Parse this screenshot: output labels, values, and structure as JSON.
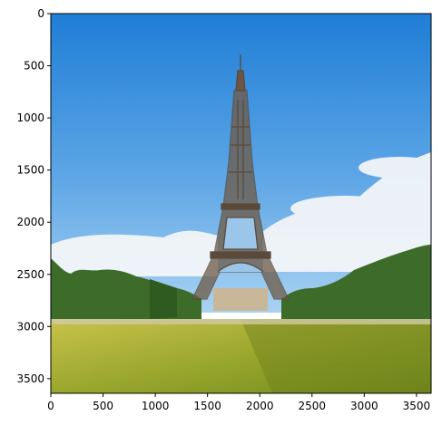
{
  "figure": {
    "kind": "image-display-with-pixel-axes",
    "image_description_tag": "eiffel-tower-photo",
    "x_axis": {
      "ticks": [
        0,
        500,
        1000,
        1500,
        2000,
        2500,
        3000,
        3500
      ],
      "range": [
        0,
        3640
      ]
    },
    "y_axis": {
      "ticks": [
        0,
        500,
        1000,
        1500,
        2000,
        2500,
        3000,
        3500
      ],
      "range": [
        0,
        3640
      ],
      "inverted": true
    },
    "colors": {
      "sky_top": "#1f7ed6",
      "sky_bottom": "#8fc3ec",
      "cloud": "#f2f5f8",
      "tower": "#5b4a3a",
      "tree": "#3d6b2a",
      "grass_light": "#b7b83a",
      "grass_dark": "#7a8a1f",
      "frame": "#000000"
    }
  }
}
